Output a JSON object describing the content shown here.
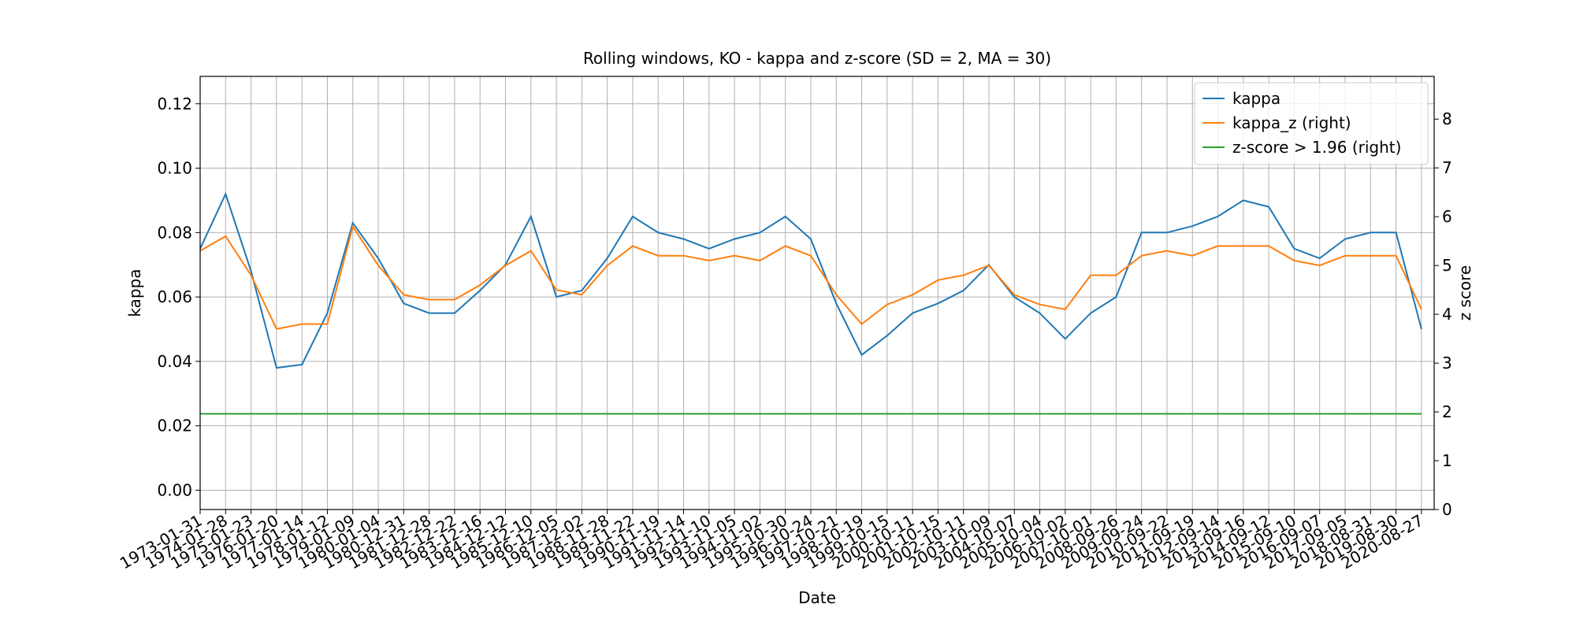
{
  "chart_data": {
    "type": "line",
    "title": "Rolling windows, KO - kappa and z-score (SD = 2, MA = 30)",
    "x_label": "Date",
    "y_label": "kappa",
    "y2_label": "z score",
    "x": [
      "1973-01-31",
      "1974-01-28",
      "1975-01-23",
      "1976-01-20",
      "1977-01-14",
      "1978-01-12",
      "1979-01-09",
      "1980-01-04",
      "1980-12-31",
      "1981-12-28",
      "1982-12-22",
      "1983-12-16",
      "1984-12-12",
      "1985-12-10",
      "1986-12-05",
      "1987-12-02",
      "1988-11-28",
      "1989-11-22",
      "1990-11-19",
      "1991-11-14",
      "1992-11-10",
      "1993-11-05",
      "1994-11-02",
      "1995-10-30",
      "1996-10-24",
      "1997-10-21",
      "1998-10-19",
      "1999-10-15",
      "2000-10-11",
      "2001-10-15",
      "2002-10-11",
      "2003-10-09",
      "2004-10-07",
      "2005-10-04",
      "2006-10-02",
      "2007-10-01",
      "2008-09-26",
      "2009-09-24",
      "2010-09-22",
      "2011-09-19",
      "2012-09-14",
      "2013-09-16",
      "2014-09-12",
      "2015-09-10",
      "2016-09-07",
      "2017-09-05",
      "2018-08-31",
      "2019-08-30",
      "2020-08-27"
    ],
    "series": [
      {
        "name": "kappa",
        "color": "#1f77b4",
        "axis": "y",
        "values": [
          0.075,
          0.092,
          0.068,
          0.038,
          0.039,
          0.055,
          0.083,
          0.072,
          0.058,
          0.055,
          0.055,
          0.062,
          0.07,
          0.085,
          0.06,
          0.062,
          0.072,
          0.085,
          0.08,
          0.078,
          0.075,
          0.078,
          0.08,
          0.085,
          0.078,
          0.058,
          0.042,
          0.048,
          0.055,
          0.058,
          0.062,
          0.07,
          0.06,
          0.055,
          0.047,
          0.055,
          0.06,
          0.08,
          0.08,
          0.082,
          0.085,
          0.09,
          0.088,
          0.075,
          0.072,
          0.078,
          0.08,
          0.08,
          0.05
        ]
      },
      {
        "name": "kappa_z (right)",
        "color": "#ff7f0e",
        "axis": "y2",
        "values": [
          5.3,
          5.6,
          4.8,
          3.7,
          3.8,
          3.8,
          5.8,
          5.0,
          4.4,
          4.3,
          4.3,
          4.6,
          5.0,
          5.3,
          4.5,
          4.4,
          5.0,
          5.4,
          5.2,
          5.2,
          5.1,
          5.2,
          5.1,
          5.4,
          5.2,
          4.4,
          3.8,
          4.2,
          4.4,
          4.7,
          4.8,
          5.0,
          4.4,
          4.2,
          4.1,
          4.8,
          4.8,
          5.2,
          5.3,
          5.2,
          5.4,
          5.4,
          5.4,
          5.1,
          5.0,
          5.2,
          5.2,
          5.2,
          4.1
        ]
      },
      {
        "name": "z-score > 1.96 (right)",
        "color": "#2ca02c",
        "axis": "y2",
        "values": [
          1.96,
          1.96,
          1.96,
          1.96,
          1.96,
          1.96,
          1.96,
          1.96,
          1.96,
          1.96,
          1.96,
          1.96,
          1.96,
          1.96,
          1.96,
          1.96,
          1.96,
          1.96,
          1.96,
          1.96,
          1.96,
          1.96,
          1.96,
          1.96,
          1.96,
          1.96,
          1.96,
          1.96,
          1.96,
          1.96,
          1.96,
          1.96,
          1.96,
          1.96,
          1.96,
          1.96,
          1.96,
          1.96,
          1.96,
          1.96,
          1.96,
          1.96,
          1.96,
          1.96,
          1.96,
          1.96,
          1.96,
          1.96,
          1.96
        ]
      }
    ],
    "ylim": [
      -0.006,
      0.1285
    ],
    "yticks": [
      {
        "value": 0,
        "label": "0.00"
      },
      0.02,
      0.04,
      0.06,
      0.08,
      {
        "value": 0.1,
        "label": "0.10"
      },
      0.12
    ],
    "y2lim": [
      0,
      8.875
    ],
    "y2ticks": [
      0,
      1,
      2,
      3,
      4,
      5,
      6,
      7,
      8
    ],
    "grid": true,
    "legend": "upper right"
  }
}
